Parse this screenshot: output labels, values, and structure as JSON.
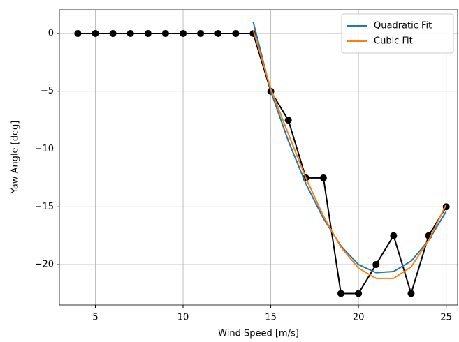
{
  "chart_data": {
    "type": "line",
    "xlabel": "Wind Speed [m/s]",
    "ylabel": "Yaw Angle [deg]",
    "x": [
      4,
      5,
      6,
      7,
      8,
      9,
      10,
      11,
      12,
      13,
      14,
      15,
      16,
      17,
      18,
      19,
      20,
      21,
      22,
      23,
      24,
      25
    ],
    "series": [
      {
        "color": "#000000",
        "marker": "o",
        "values": [
          0,
          0,
          0,
          0,
          0,
          0,
          0,
          0,
          0,
          0,
          0,
          -5,
          -7.5,
          -12.5,
          -12.5,
          -22.5,
          -22.5,
          -20,
          -17.5,
          -22.5,
          -17.5,
          -15
        ]
      },
      {
        "name": "Quadratic Fit",
        "color": "#1f77b4",
        "values": [
          null,
          null,
          null,
          null,
          null,
          null,
          null,
          null,
          null,
          null,
          1.0,
          -5.0,
          -9.3,
          -13.0,
          -16.0,
          -18.4,
          -20.0,
          -20.7,
          -20.6,
          -19.7,
          -17.9,
          -15.4
        ]
      },
      {
        "name": "Cubic Fit",
        "color": "#ff7f0e",
        "values": [
          null,
          null,
          null,
          null,
          null,
          null,
          null,
          null,
          null,
          null,
          0.3,
          -4.8,
          -8.7,
          -12.5,
          -15.8,
          -18.5,
          -20.3,
          -21.2,
          -21.2,
          -20.2,
          -17.9,
          -14.8
        ]
      }
    ],
    "xlim": [
      2.95,
      25.65
    ],
    "ylim": [
      -23.5,
      2.05
    ],
    "xticks": [
      5,
      10,
      15,
      20,
      25
    ],
    "yticks": [
      0,
      {
        "value": -5,
        "label": "−5"
      },
      {
        "value": -10,
        "label": "−10"
      },
      {
        "value": -15,
        "label": "−15"
      },
      {
        "value": -20,
        "label": "−20"
      }
    ],
    "grid": true,
    "legend": "upper right"
  }
}
